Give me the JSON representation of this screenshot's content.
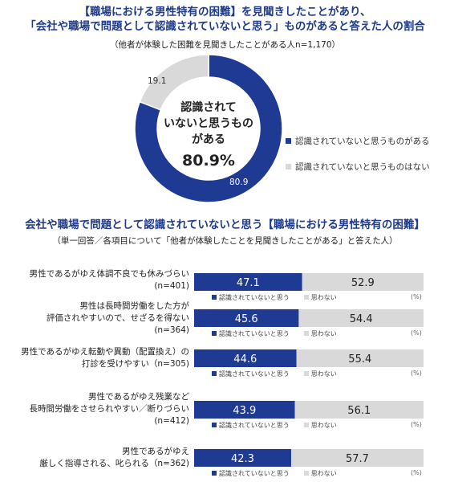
{
  "header": {
    "title_line1": "【職場における男性特有の困難】を見聞きしたことがあり、",
    "title_line2": "「会社や職場で問題として認識されていないと思う」ものがあると答えた人の割合",
    "note": "（他者が体験した困難を見聞きしたことがある人n=1,170）"
  },
  "section2": {
    "title": "会社や職場で問題として認識されていないと思う【職場における男性特有の困難】",
    "note": "（単一回答／各項目について「他者が体験したことを見聞きしたことがある」と答えた人）",
    "unit": "(%)"
  },
  "colors": {
    "navy": "#1f3a93",
    "gray": "#d9d9d9"
  },
  "chart_data": [
    {
      "type": "pie",
      "variant": "donut",
      "categories": [
        "認識されていないと思うものがある",
        "認識されていないと思うものはない"
      ],
      "values": [
        80.9,
        19.1
      ],
      "data_labels": [
        "80.9",
        "19.1"
      ],
      "center_text": [
        "認識されて",
        "いないと思うもの",
        "がある"
      ],
      "center_value": "80.9%",
      "legend": [
        "認識されていないと思うものがある",
        "認識されていないと思うものはない"
      ],
      "legend_position": "right"
    },
    {
      "type": "bar",
      "orientation": "horizontal",
      "stacked": true,
      "unit": "(%)",
      "legend": [
        "認識されていないと思う",
        "思わない"
      ],
      "categories": [
        {
          "lines": [
            "男性であるがゆえ体調不良でも休みづらい",
            "(n=401)"
          ]
        },
        {
          "lines": [
            "男性は長時間労働をした方が",
            "評価されやすいので、せざるを得ない",
            "(n=364)"
          ]
        },
        {
          "lines": [
            "男性であるがゆえ転勤や異動（配置換え）の",
            "打診を受けやすい（n=305)"
          ]
        },
        {
          "lines": [
            "男性であるがゆえ残業など",
            "長時間労働をさせられやすい／断りづらい",
            "(n=412)"
          ]
        },
        {
          "lines": [
            "男性であるがゆえ",
            "厳しく指導される、叱られる（n=362)"
          ]
        }
      ],
      "series": [
        {
          "name": "認識されていないと思う",
          "values": [
            47.1,
            45.6,
            44.6,
            43.9,
            42.3
          ]
        },
        {
          "name": "思わない",
          "values": [
            52.9,
            54.4,
            55.4,
            56.1,
            57.7
          ]
        }
      ],
      "xlim": [
        0,
        100
      ]
    }
  ]
}
